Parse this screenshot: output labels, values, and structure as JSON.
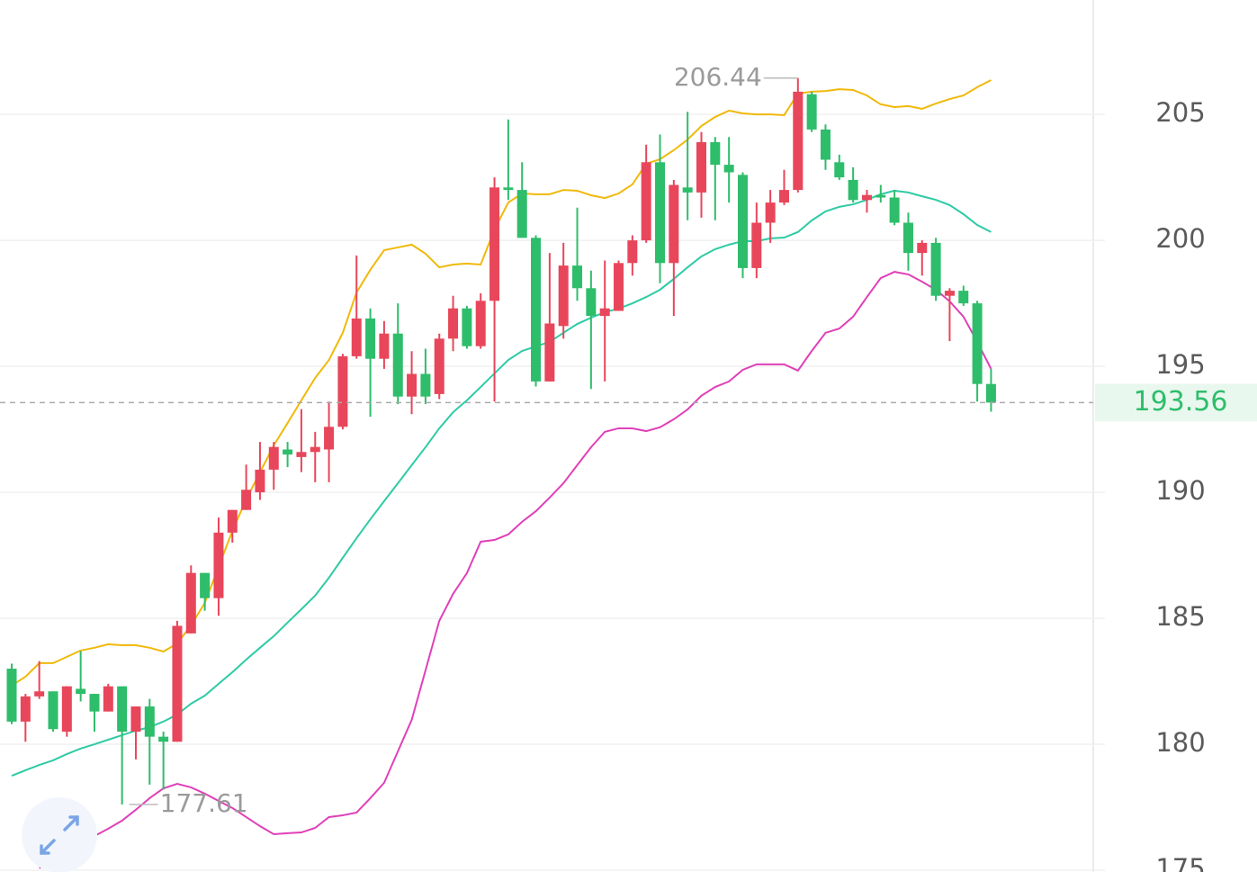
{
  "chart_data": {
    "type": "candlestick",
    "up_color": "#e8465a",
    "down_color": "#2ebd6b",
    "ylim": [
      174.93,
      209.54
    ],
    "yticks": [
      175,
      180,
      185,
      190,
      195,
      200,
      205
    ],
    "grid": true,
    "open": [
      183.0,
      180.9,
      181.9,
      182.1,
      180.5,
      182.2,
      182.0,
      181.3,
      182.3,
      180.5,
      181.5,
      180.3,
      180.1,
      184.4,
      186.8,
      185.8,
      188.4,
      189.3,
      190.0,
      190.9,
      191.7,
      191.4,
      191.6,
      191.7,
      192.6,
      195.4,
      196.9,
      195.3,
      196.3,
      193.8,
      194.7,
      193.9,
      196.1,
      197.3,
      195.8,
      197.6,
      202.1,
      202.0,
      200.1,
      194.4,
      196.6,
      199.0,
      198.1,
      197.0,
      197.2,
      199.1,
      200.0,
      203.1,
      199.1,
      202.1,
      201.9,
      203.9,
      203.0,
      202.6,
      198.9,
      200.7,
      201.5,
      202.0,
      205.8,
      204.4,
      203.1,
      202.4,
      201.6,
      201.8,
      201.7,
      200.7,
      199.5,
      199.9,
      197.8,
      198.0,
      197.5,
      194.3
    ],
    "high": [
      183.2,
      182.0,
      183.3,
      182.1,
      182.3,
      183.7,
      182.0,
      182.4,
      182.3,
      181.5,
      181.8,
      180.5,
      184.9,
      187.1,
      186.8,
      189.0,
      189.3,
      191.1,
      192.0,
      192.0,
      192.0,
      193.3,
      192.4,
      193.6,
      195.5,
      199.4,
      197.3,
      196.8,
      197.5,
      195.6,
      195.7,
      196.3,
      197.8,
      197.4,
      197.9,
      202.5,
      204.8,
      203.1,
      200.2,
      199.5,
      199.9,
      201.3,
      198.8,
      199.2,
      199.2,
      200.2,
      203.8,
      204.2,
      202.4,
      205.1,
      204.3,
      204.1,
      204.1,
      202.7,
      201.5,
      202.0,
      202.8,
      206.44,
      205.9,
      204.6,
      203.4,
      202.9,
      202.0,
      202.2,
      202.0,
      201.1,
      200.0,
      200.1,
      198.1,
      198.2,
      197.6,
      194.9
    ],
    "low": [
      180.8,
      180.1,
      181.8,
      180.5,
      180.3,
      181.7,
      180.5,
      181.3,
      177.61,
      179.4,
      178.4,
      178.2,
      180.1,
      184.4,
      185.3,
      185.1,
      188.0,
      189.3,
      189.7,
      190.1,
      191.0,
      190.8,
      190.4,
      190.4,
      192.5,
      195.3,
      193.0,
      194.9,
      193.5,
      193.1,
      193.5,
      193.7,
      195.6,
      195.7,
      195.7,
      193.6,
      201.6,
      200.1,
      194.2,
      194.4,
      196.1,
      197.6,
      194.1,
      194.4,
      197.2,
      198.6,
      199.9,
      198.3,
      197.0,
      200.8,
      200.9,
      200.8,
      201.5,
      198.5,
      198.5,
      199.9,
      201.4,
      201.9,
      204.3,
      202.8,
      202.4,
      201.5,
      201.1,
      201.5,
      200.6,
      198.8,
      198.6,
      197.6,
      196.0,
      197.4,
      193.6,
      193.2
    ],
    "close": [
      180.9,
      181.9,
      182.1,
      180.6,
      182.3,
      182.0,
      181.3,
      182.3,
      180.5,
      181.5,
      180.3,
      180.1,
      184.7,
      186.8,
      185.8,
      188.4,
      189.3,
      190.1,
      190.9,
      191.8,
      191.5,
      191.6,
      191.8,
      192.6,
      195.4,
      196.9,
      195.3,
      196.3,
      193.8,
      194.7,
      193.8,
      196.1,
      197.3,
      195.8,
      197.6,
      202.1,
      202.0,
      200.1,
      194.4,
      196.7,
      199.0,
      198.1,
      197.0,
      197.3,
      199.1,
      200.0,
      203.1,
      199.1,
      202.2,
      201.9,
      203.9,
      203.0,
      202.7,
      198.9,
      200.7,
      201.5,
      202.0,
      205.9,
      204.4,
      203.2,
      202.5,
      201.6,
      201.8,
      201.7,
      200.7,
      199.5,
      199.9,
      197.8,
      198.0,
      197.5,
      194.3,
      193.56
    ],
    "series": [
      {
        "color": "#f0b90b",
        "values": [
          182.33,
          182.68,
          183.22,
          183.22,
          183.47,
          183.72,
          183.83,
          183.97,
          183.93,
          183.93,
          183.83,
          183.68,
          184.0,
          184.72,
          185.61,
          187.04,
          188.47,
          189.72,
          190.79,
          191.86,
          192.75,
          193.65,
          194.54,
          195.25,
          196.33,
          197.93,
          198.83,
          199.61,
          199.72,
          199.83,
          199.47,
          198.93,
          199.04,
          199.08,
          199.04,
          200.43,
          201.5,
          201.86,
          201.83,
          201.83,
          202.0,
          201.97,
          201.79,
          201.68,
          201.86,
          202.22,
          203.04,
          203.22,
          203.58,
          204.0,
          204.54,
          204.9,
          205.15,
          205.04,
          205.0,
          205.0,
          204.97,
          205.83,
          205.9,
          205.93,
          206.0,
          205.97,
          205.75,
          205.4,
          205.29,
          205.33,
          205.22,
          205.43,
          205.61,
          205.75,
          206.08,
          206.36
        ]
      },
      {
        "color": "#2ecba5",
        "values": [
          178.75,
          178.97,
          179.18,
          179.36,
          179.61,
          179.83,
          180.0,
          180.18,
          180.36,
          180.54,
          180.68,
          180.9,
          181.18,
          181.61,
          181.93,
          182.4,
          182.86,
          183.36,
          183.83,
          184.29,
          184.83,
          185.36,
          185.9,
          186.61,
          187.4,
          188.18,
          188.93,
          189.65,
          190.36,
          191.08,
          191.79,
          192.54,
          193.18,
          193.65,
          194.18,
          194.72,
          195.25,
          195.61,
          195.79,
          195.97,
          196.33,
          196.68,
          196.93,
          197.15,
          197.29,
          197.5,
          197.75,
          198.04,
          198.47,
          198.93,
          199.36,
          199.65,
          199.83,
          199.97,
          199.97,
          200.08,
          200.11,
          200.33,
          200.79,
          201.15,
          201.33,
          201.43,
          201.61,
          201.83,
          201.97,
          201.9,
          201.75,
          201.61,
          201.4,
          201.04,
          200.61,
          200.33
        ]
      },
      {
        "color": "#e040b8",
        "values": [
          null,
          null,
          175.08,
          175.43,
          175.79,
          176.08,
          176.36,
          176.65,
          176.97,
          177.4,
          177.86,
          178.25,
          178.43,
          178.29,
          178.04,
          177.75,
          177.47,
          177.11,
          176.75,
          176.43,
          176.47,
          176.5,
          176.68,
          177.11,
          177.18,
          177.29,
          177.86,
          178.47,
          179.72,
          180.97,
          182.93,
          184.9,
          185.97,
          186.79,
          188.04,
          188.11,
          188.33,
          188.83,
          189.25,
          189.79,
          190.36,
          191.08,
          191.79,
          192.4,
          192.54,
          192.54,
          192.43,
          192.58,
          192.9,
          193.29,
          193.83,
          194.18,
          194.4,
          194.86,
          195.08,
          195.08,
          195.08,
          194.83,
          195.61,
          196.33,
          196.5,
          196.97,
          197.75,
          198.5,
          198.75,
          198.65,
          198.36,
          198.04,
          197.58,
          196.97,
          195.97,
          194.9
        ]
      }
    ],
    "high_label": 206.44,
    "low_label": 177.61,
    "last_price": 193.56
  }
}
